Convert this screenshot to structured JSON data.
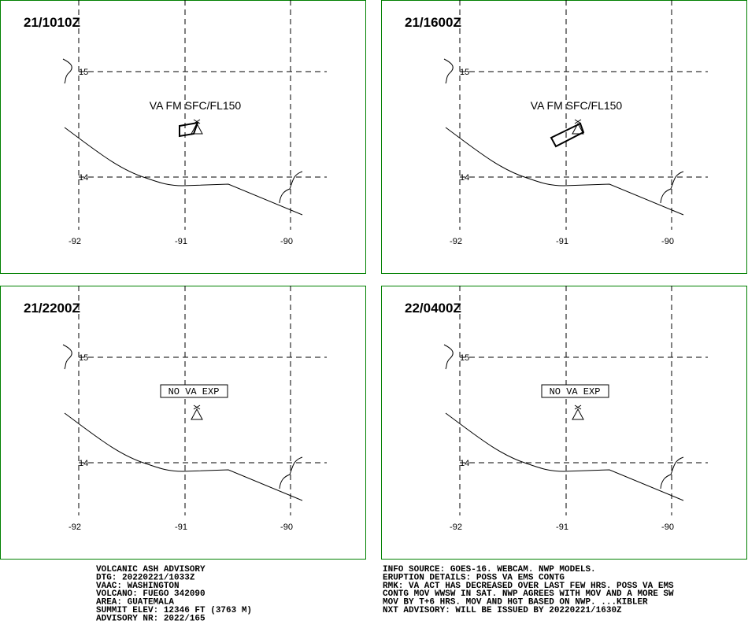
{
  "panels": [
    {
      "time": "21/1010Z",
      "lat_labels": [
        "15",
        "14"
      ],
      "lon_labels": [
        "-92",
        "-91",
        "-90"
      ],
      "ash_label": "VA FM SFC/FL150"
    },
    {
      "time": "21/1600Z",
      "lat_labels": [
        "15",
        "14"
      ],
      "lon_labels": [
        "-92",
        "-91",
        "-90"
      ],
      "ash_label": "VA FM SFC/FL150"
    },
    {
      "time": "21/2200Z",
      "lat_labels": [
        "15",
        "14"
      ],
      "lon_labels": [
        "-92",
        "-91",
        "-90"
      ],
      "no_ash_label": "NO VA EXP"
    },
    {
      "time": "22/0400Z",
      "lat_labels": [
        "15",
        "14"
      ],
      "lon_labels": [
        "-92",
        "-91",
        "-90"
      ],
      "no_ash_label": "NO VA EXP"
    }
  ],
  "footer_left": [
    "VOLCANIC ASH ADVISORY",
    "DTG: 20220221/1033Z",
    "VAAC: WASHINGTON",
    "VOLCANO: FUEGO 342090",
    "AREA: GUATEMALA",
    "SUMMIT ELEV: 12346 FT (3763 M)",
    "ADVISORY NR: 2022/165"
  ],
  "footer_right": [
    "INFO SOURCE: GOES-16. WEBCAM. NWP MODELS.",
    "ERUPTION DETAILS: POSS VA EMS CONTG",
    "RMK: VA ACT HAS DECREASED OVER LAST FEW HRS. POSS VA EMS",
    "CONTG MOV WWSW IN SAT. NWP AGREES WITH MOV AND A MORE SW",
    "MOV BY T+6 HRS. MOV AND HGT BASED ON NWP. ...KIBLER",
    "NXT ADVISORY: WILL BE ISSUED BY 20220221/1630Z"
  ]
}
